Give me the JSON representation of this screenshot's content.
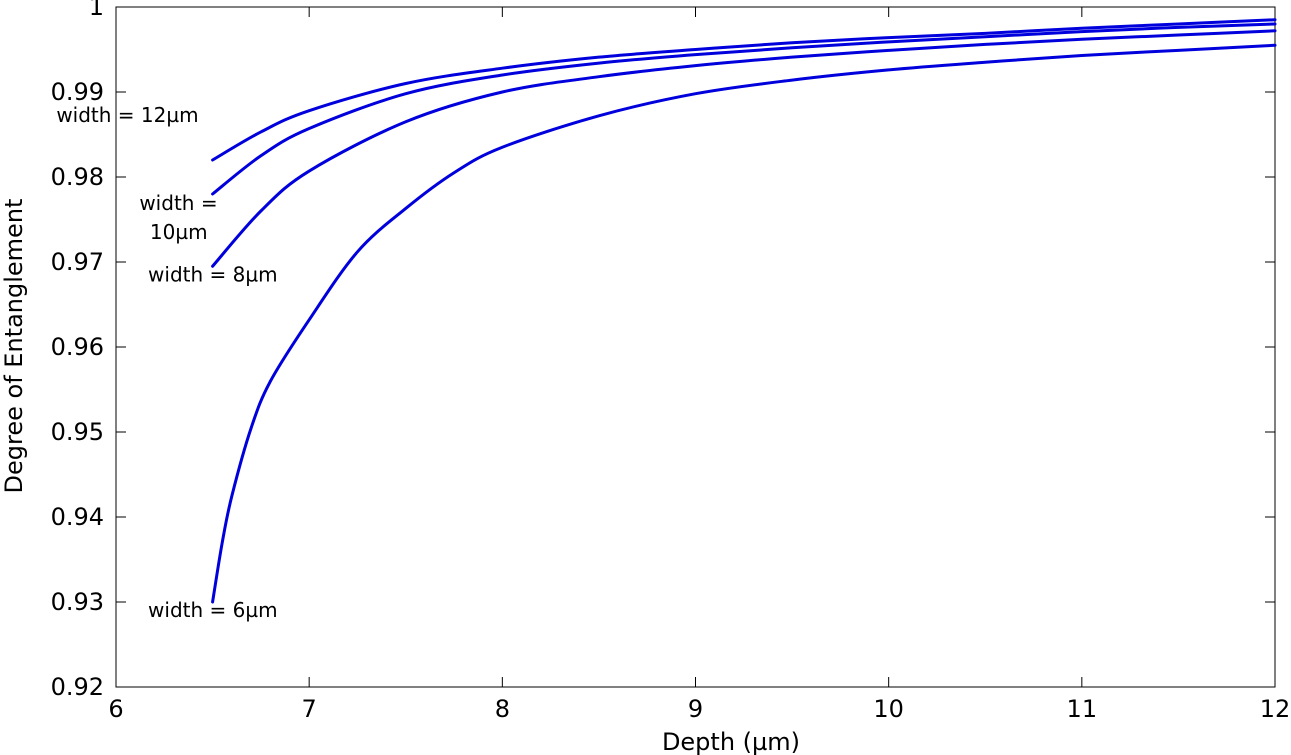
{
  "chart_data": {
    "type": "line",
    "title": "",
    "xlabel": "Depth (µm)",
    "ylabel": "Degree of Entanglement",
    "xlim": [
      6,
      12
    ],
    "ylim": [
      0.92,
      1.0
    ],
    "xticks": [
      6,
      7,
      8,
      9,
      10,
      11,
      12
    ],
    "xtick_labels": [
      "6",
      "7",
      "8",
      "9",
      "10",
      "11",
      "12"
    ],
    "yticks": [
      0.92,
      0.93,
      0.94,
      0.95,
      0.96,
      0.97,
      0.98,
      0.99,
      1.0
    ],
    "ytick_labels": [
      "0.92",
      "0.93",
      "0.94",
      "0.95",
      "0.96",
      "0.97",
      "0.98",
      "0.99",
      "1"
    ],
    "grid": false,
    "line_color": "#0000dd",
    "series": [
      {
        "name": "width = 12µm",
        "label_lines": [
          "width = 12µm"
        ],
        "x": [
          6.5,
          6.75,
          7.0,
          7.5,
          8.0,
          8.5,
          9.0,
          9.5,
          10.0,
          10.5,
          11.0,
          11.5,
          12.0
        ],
        "values": [
          0.982,
          0.9853,
          0.9878,
          0.991,
          0.9928,
          0.9941,
          0.995,
          0.9958,
          0.9964,
          0.9969,
          0.9975,
          0.998,
          0.9985
        ]
      },
      {
        "name": "width = 10µm",
        "label_lines": [
          "width =",
          "10µm"
        ],
        "x": [
          6.5,
          6.75,
          7.0,
          7.5,
          8.0,
          8.5,
          9.0,
          9.5,
          10.0,
          10.5,
          11.0,
          11.5,
          12.0
        ],
        "values": [
          0.978,
          0.9825,
          0.9857,
          0.9898,
          0.992,
          0.9934,
          0.9944,
          0.9952,
          0.9959,
          0.9965,
          0.9971,
          0.9976,
          0.998
        ]
      },
      {
        "name": "width = 8µm",
        "label_lines": [
          "width = 8µm"
        ],
        "x": [
          6.5,
          6.75,
          7.0,
          7.5,
          8.0,
          8.5,
          9.0,
          9.5,
          10.0,
          10.5,
          11.0,
          11.5,
          12.0
        ],
        "values": [
          0.9695,
          0.976,
          0.9807,
          0.9865,
          0.99,
          0.9918,
          0.9931,
          0.9941,
          0.9949,
          0.9956,
          0.9962,
          0.9967,
          0.9972
        ]
      },
      {
        "name": "width = 6µm",
        "label_lines": [
          "width = 6µm"
        ],
        "x": [
          6.5,
          6.55,
          6.6,
          6.7,
          6.8,
          7.0,
          7.25,
          7.5,
          7.75,
          8.0,
          8.5,
          9.0,
          9.5,
          10.0,
          10.5,
          11.0,
          11.5,
          12.0
        ],
        "values": [
          0.93,
          0.937,
          0.9425,
          0.9505,
          0.956,
          0.9632,
          0.9712,
          0.9763,
          0.9805,
          0.9835,
          0.9872,
          0.9898,
          0.9914,
          0.9926,
          0.9935,
          0.9943,
          0.9949,
          0.9955
        ]
      }
    ]
  }
}
